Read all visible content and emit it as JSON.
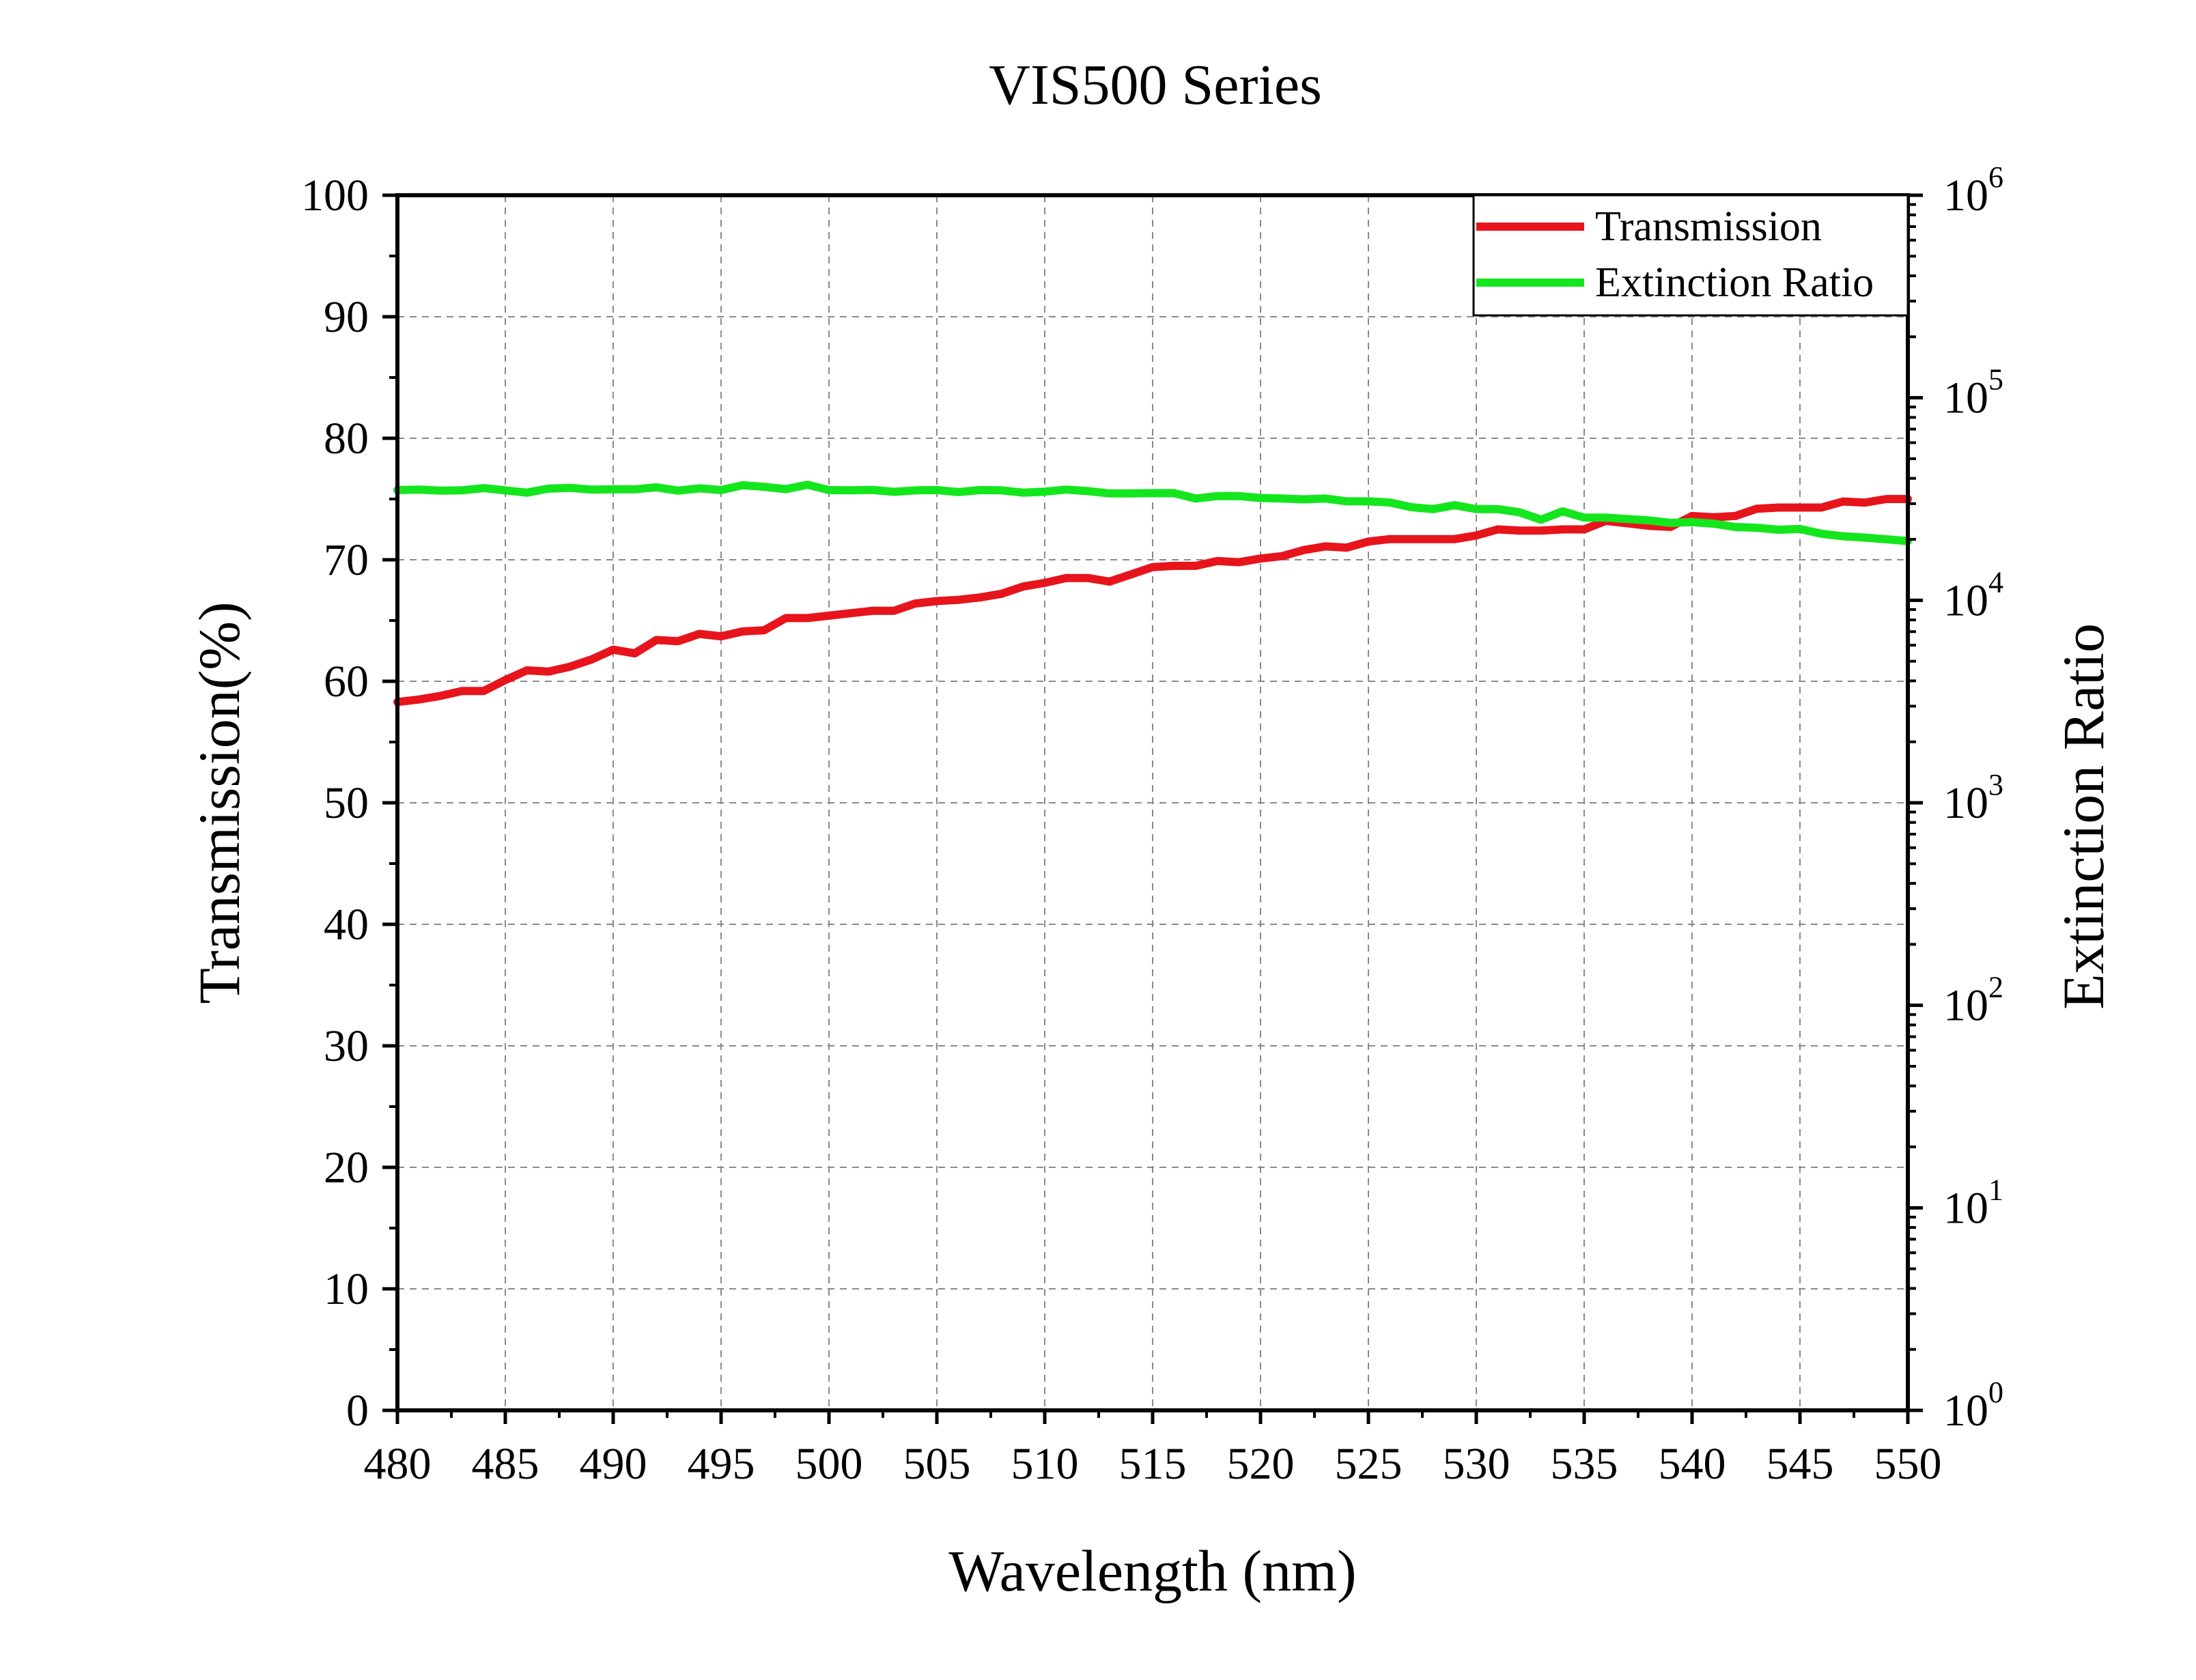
{
  "chart_data": {
    "type": "line",
    "title": "VIS500 Series",
    "xlabel": "Wavelength (nm)",
    "ylabel": "Transmission(%)",
    "y2label": "Extinction Ratio",
    "xlim": [
      480,
      550
    ],
    "ylim": [
      0,
      100
    ],
    "y2lim": [
      1,
      1000000
    ],
    "y2scale": "log",
    "grid": true,
    "legend_position": "top-right",
    "xticks": [
      "480",
      "485",
      "490",
      "495",
      "500",
      "505",
      "510",
      "515",
      "520",
      "525",
      "530",
      "535",
      "540",
      "545",
      "550"
    ],
    "yticks": [
      "0",
      "10",
      "20",
      "30",
      "40",
      "50",
      "60",
      "70",
      "80",
      "90",
      "100"
    ],
    "y2ticks": [
      {
        "base": "10",
        "exp": "0"
      },
      {
        "base": "10",
        "exp": "1"
      },
      {
        "base": "10",
        "exp": "2"
      },
      {
        "base": "10",
        "exp": "3"
      },
      {
        "base": "10",
        "exp": "4"
      },
      {
        "base": "10",
        "exp": "5"
      },
      {
        "base": "10",
        "exp": "6"
      }
    ],
    "x": [
      480,
      481,
      482,
      483,
      484,
      485,
      486,
      487,
      488,
      489,
      490,
      491,
      492,
      493,
      494,
      495,
      496,
      497,
      498,
      499,
      500,
      501,
      502,
      503,
      504,
      505,
      506,
      507,
      508,
      509,
      510,
      511,
      512,
      513,
      514,
      515,
      516,
      517,
      518,
      519,
      520,
      521,
      522,
      523,
      524,
      525,
      526,
      527,
      528,
      529,
      530,
      531,
      532,
      533,
      534,
      535,
      536,
      537,
      538,
      539,
      540,
      541,
      542,
      543,
      544,
      545,
      546,
      547,
      548,
      549,
      550
    ],
    "series": [
      {
        "name": "Transmission",
        "axis": "left",
        "color": "#e8141c",
        "values": [
          58.3,
          58.5,
          58.8,
          59.2,
          59.2,
          60.1,
          60.9,
          60.8,
          61.2,
          61.8,
          62.6,
          62.3,
          63.4,
          63.3,
          63.9,
          63.7,
          64.1,
          64.2,
          65.2,
          65.2,
          65.4,
          65.6,
          65.8,
          65.8,
          66.4,
          66.6,
          66.7,
          66.9,
          67.2,
          67.8,
          68.1,
          68.5,
          68.5,
          68.2,
          68.8,
          69.4,
          69.5,
          69.5,
          69.9,
          69.8,
          70.1,
          70.3,
          70.8,
          71.1,
          71.0,
          71.5,
          71.7,
          71.7,
          71.7,
          71.7,
          72.0,
          72.5,
          72.4,
          72.4,
          72.5,
          72.5,
          73.2,
          73.0,
          72.8,
          72.7,
          73.6,
          73.5,
          73.6,
          74.2,
          74.3,
          74.3,
          74.3,
          74.8,
          74.7,
          75.0,
          75.0
        ]
      },
      {
        "name": "Extinction Ratio",
        "axis": "right",
        "color": "#14e61e",
        "values": [
          35000,
          35200,
          34800,
          34900,
          35800,
          34900,
          34000,
          35600,
          35900,
          35200,
          35300,
          35300,
          36100,
          34800,
          35700,
          35000,
          37000,
          36300,
          35400,
          37200,
          35000,
          34900,
          35100,
          34300,
          34900,
          35000,
          34200,
          35000,
          34900,
          34000,
          34400,
          35200,
          34600,
          33700,
          33700,
          33800,
          33800,
          31800,
          32700,
          32700,
          32000,
          31800,
          31500,
          31800,
          30800,
          30800,
          30400,
          28800,
          28200,
          29500,
          28200,
          28200,
          27200,
          25000,
          27500,
          25600,
          25600,
          25200,
          24800,
          24100,
          24300,
          23900,
          23000,
          22800,
          22300,
          22500,
          21300,
          20700,
          20400,
          20000,
          19600
        ]
      }
    ]
  }
}
